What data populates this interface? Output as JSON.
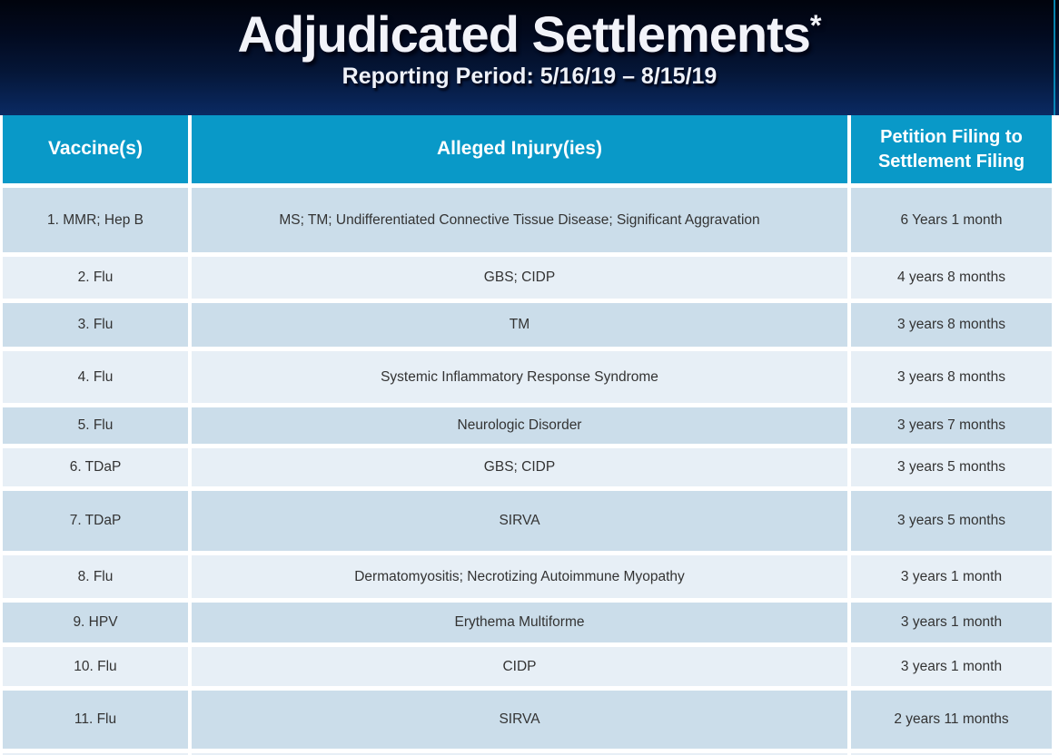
{
  "slide": {
    "title": "Adjudicated Settlements",
    "title_asterisk": "*",
    "subtitle": "Reporting Period: 5/16/19 – 8/15/19"
  },
  "table": {
    "columns": [
      "Vaccine(s)",
      "Alleged Injury(ies)",
      "Petition Filing to Settlement Filing"
    ],
    "rows": [
      {
        "vaccine": "1. MMR; Hep B",
        "injury": "MS; TM; Undifferentiated Connective Tissue Disease; Significant Aggravation",
        "duration": "6 Years 1 month"
      },
      {
        "vaccine": "2. Flu",
        "injury": "GBS; CIDP",
        "duration": "4 years 8 months"
      },
      {
        "vaccine": "3. Flu",
        "injury": "TM",
        "duration": "3 years 8 months"
      },
      {
        "vaccine": "4. Flu",
        "injury": "Systemic Inflammatory Response Syndrome",
        "duration": "3 years 8 months"
      },
      {
        "vaccine": "5. Flu",
        "injury": "Neurologic Disorder",
        "duration": "3 years 7 months"
      },
      {
        "vaccine": "6. TDaP",
        "injury": "GBS; CIDP",
        "duration": "3 years 5 months"
      },
      {
        "vaccine": "7. TDaP",
        "injury": "SIRVA",
        "duration": "3 years 5 months"
      },
      {
        "vaccine": "8. Flu",
        "injury": "Dermatomyositis; Necrotizing Autoimmune Myopathy",
        "duration": "3 years 1 month"
      },
      {
        "vaccine": "9. HPV",
        "injury": "Erythema Multiforme",
        "duration": "3 years 1 month"
      },
      {
        "vaccine": "10. Flu",
        "injury": "CIDP",
        "duration": "3 years 1 month"
      },
      {
        "vaccine": "11. Flu",
        "injury": "SIRVA",
        "duration": "2 years 11 months"
      }
    ]
  },
  "colors": {
    "header_cyan": "#0999C8",
    "row_dark": "#CBDDEA",
    "row_light": "#E7EFF6",
    "banner_top": "#01040D",
    "banner_bottom": "#0A2A63",
    "body_text": "#333333"
  }
}
